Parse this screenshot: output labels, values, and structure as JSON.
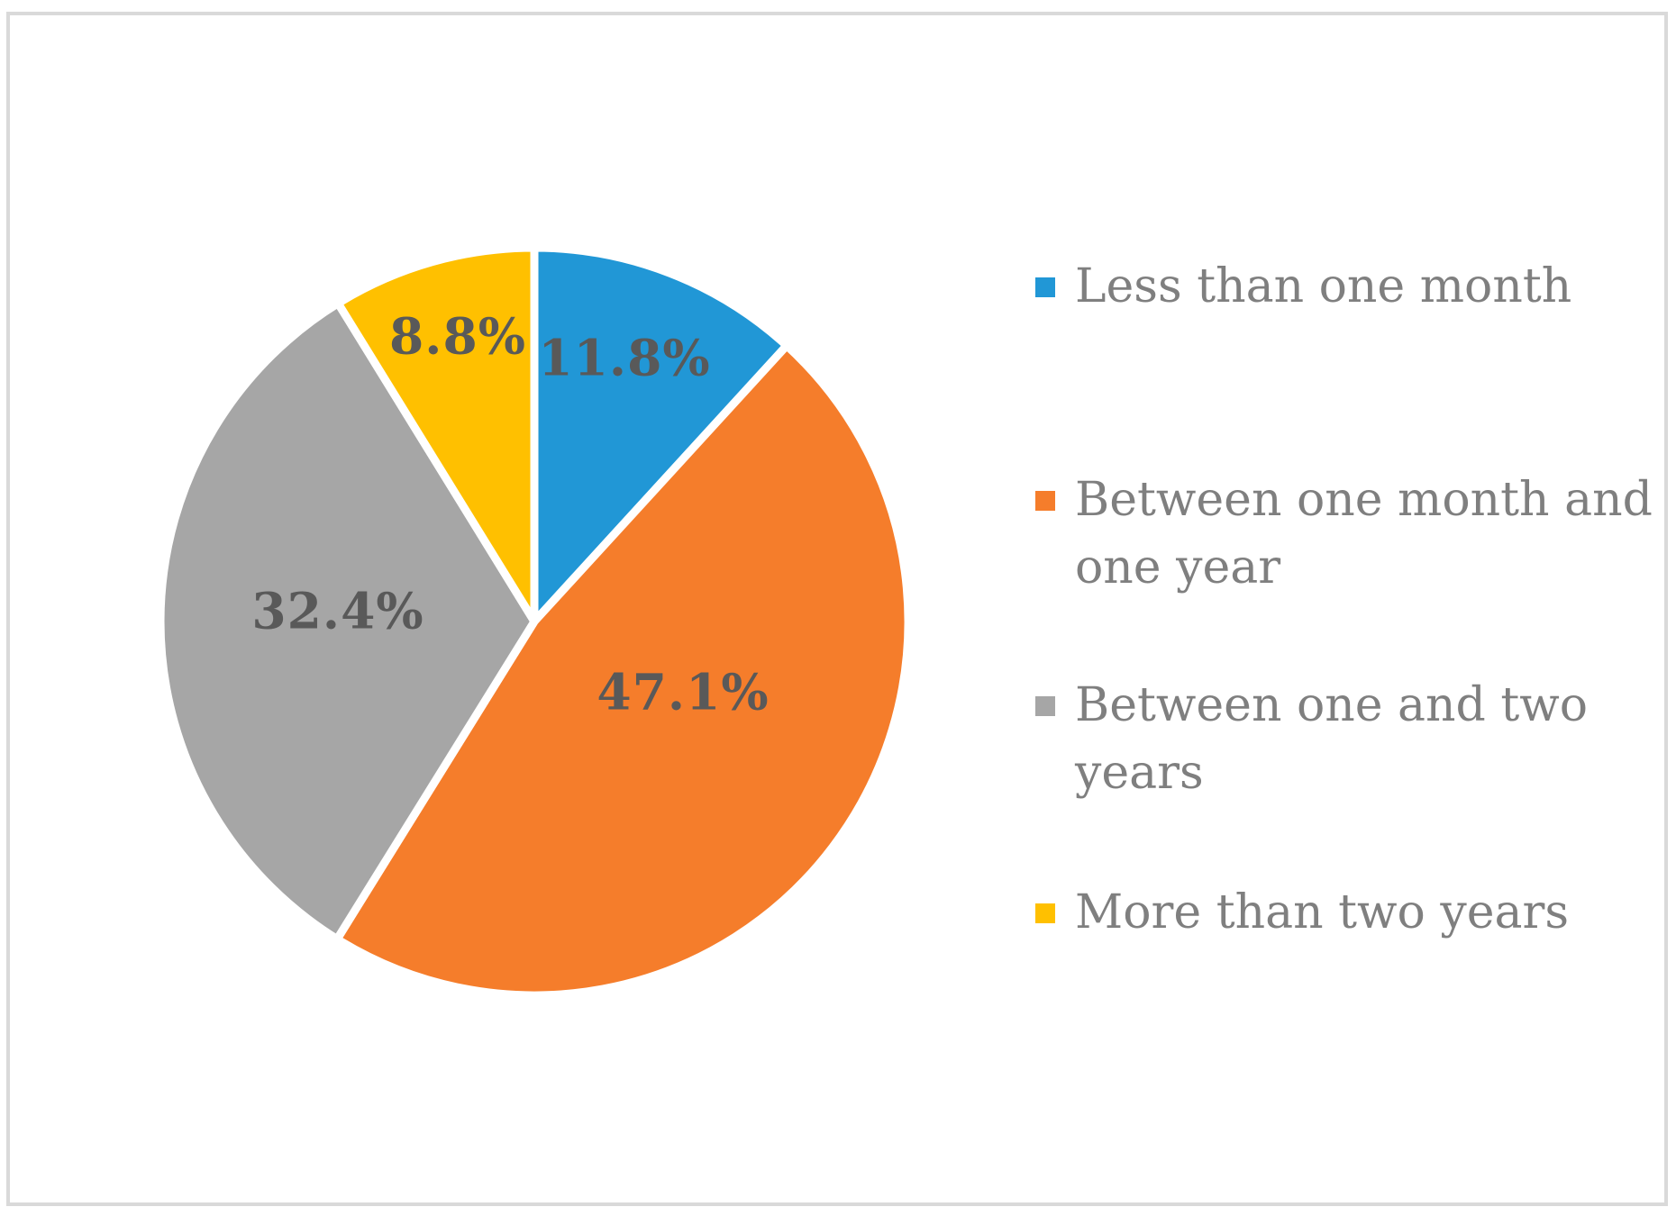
{
  "chart_data": {
    "type": "pie",
    "title": "",
    "categories": [
      "Less than one month",
      "Between one month and one year",
      "Between one and two years",
      "More than two years"
    ],
    "values": [
      11.8,
      47.1,
      32.4,
      8.8
    ],
    "slice_labels": [
      "11.8%",
      "47.1%",
      "32.4%",
      "8.8%"
    ],
    "colors": [
      "#2197D6",
      "#F57D2B",
      "#A6A6A6",
      "#FFC000"
    ],
    "slice_separator_color": "#FFFFFF",
    "label_color": "#595959",
    "legend_text_color": "#7F7F7F",
    "frame_border_color": "#D9D9D9",
    "start_angle_deg": 0,
    "direction": "clockwise",
    "legend_position": "right",
    "grid": false
  }
}
